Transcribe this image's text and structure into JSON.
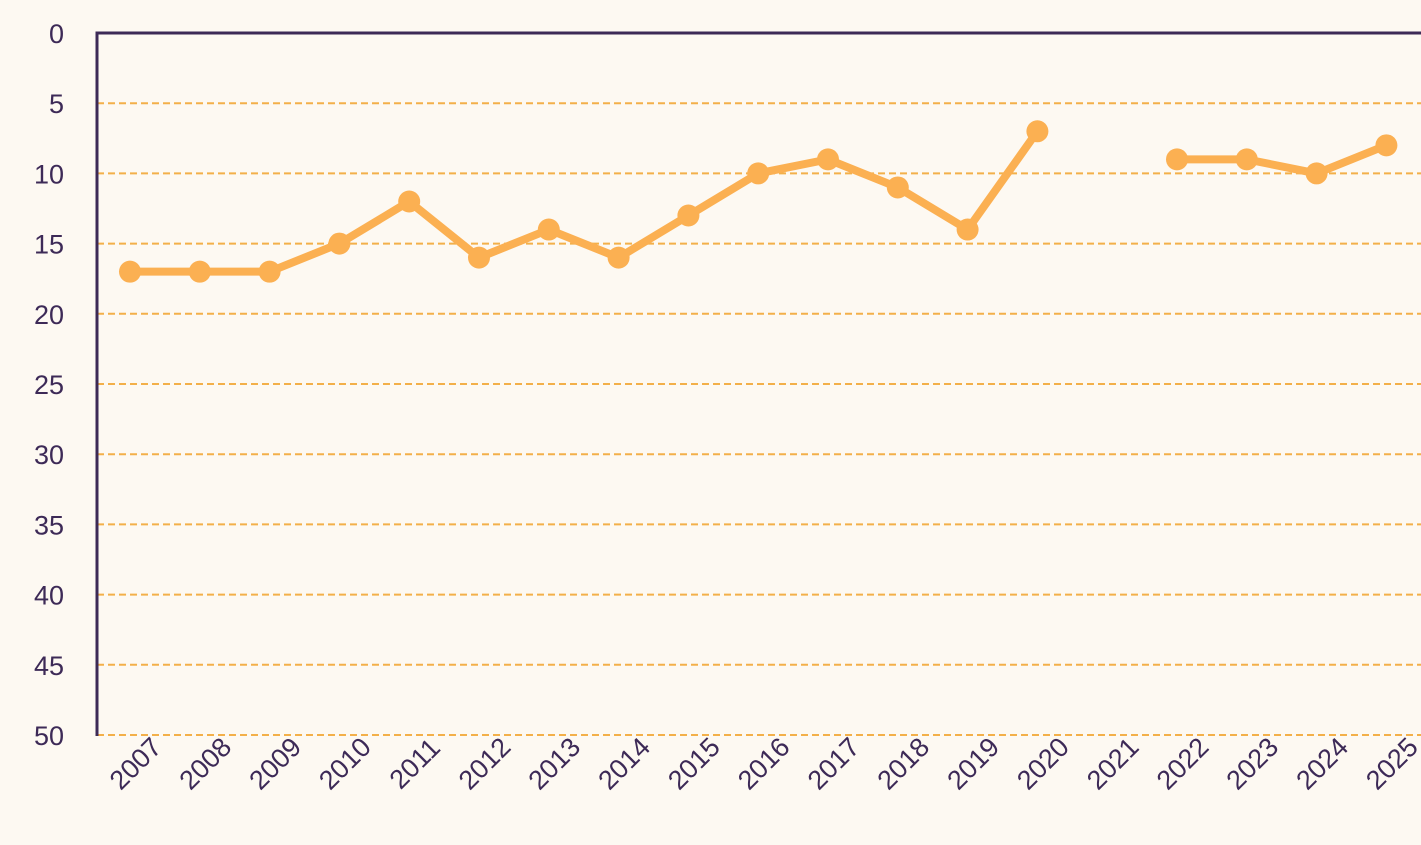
{
  "chart_data": {
    "type": "line",
    "x": [
      "2007",
      "2008",
      "2009",
      "2010",
      "2011",
      "2012",
      "2013",
      "2014",
      "2015",
      "2016",
      "2017",
      "2018",
      "2019",
      "2020",
      "2021",
      "2022",
      "2023",
      "2024",
      "2025"
    ],
    "series": [
      {
        "values": [
          17,
          17,
          17,
          15,
          12,
          16,
          14,
          16,
          13,
          10,
          9,
          11,
          14,
          7,
          null,
          9,
          9,
          10,
          8
        ]
      }
    ],
    "y_ticks": [
      "0",
      "5",
      "10",
      "15",
      "20",
      "25",
      "30",
      "35",
      "40",
      "45",
      "50"
    ],
    "ylim": [
      0,
      50
    ],
    "y_axis_inverted": true,
    "grid": true,
    "gridline_style": "dashed",
    "colors": {
      "background": "#fdf9f2",
      "line": "#fbb052",
      "grid": "#f3b04a",
      "axis": "#3d2a57",
      "text": "#3d2a57"
    }
  }
}
